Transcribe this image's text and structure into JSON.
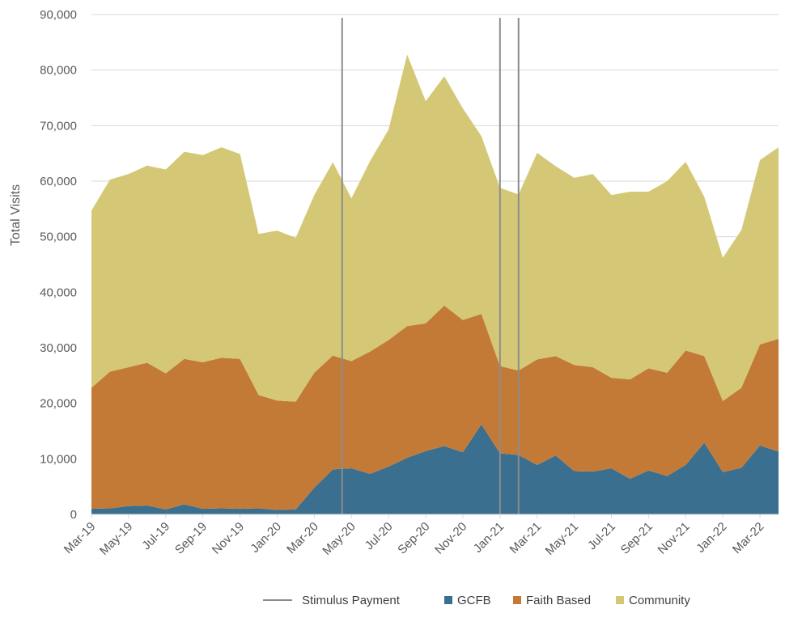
{
  "chart_data": {
    "type": "area",
    "stacked": true,
    "ylabel": "Total Visits",
    "xlabel": "",
    "ylim": [
      0,
      90000
    ],
    "yticks": [
      0,
      10000,
      20000,
      30000,
      40000,
      50000,
      60000,
      70000,
      80000,
      90000
    ],
    "ytick_labels": [
      "0",
      "10,000",
      "20,000",
      "30,000",
      "40,000",
      "50,000",
      "60,000",
      "70,000",
      "80,000",
      "90,000"
    ],
    "grid": "horizontal",
    "legend_position": "bottom",
    "x": [
      "Mar-19",
      "Apr-19",
      "May-19",
      "Jun-19",
      "Jul-19",
      "Aug-19",
      "Sep-19",
      "Oct-19",
      "Nov-19",
      "Dec-19",
      "Jan-20",
      "Feb-20",
      "Mar-20",
      "Apr-20",
      "May-20",
      "Jun-20",
      "Jul-20",
      "Aug-20",
      "Sep-20",
      "Oct-20",
      "Nov-20",
      "Dec-20",
      "Jan-21",
      "Feb-21",
      "Mar-21",
      "Apr-21",
      "May-21",
      "Jun-21",
      "Jul-21",
      "Aug-21",
      "Sep-21",
      "Oct-21",
      "Nov-21",
      "Dec-21",
      "Jan-22",
      "Feb-22",
      "Mar-22",
      "Apr-22"
    ],
    "x_tick_labels": [
      "Mar-19",
      "May-19",
      "Jul-19",
      "Sep-19",
      "Nov-19",
      "Jan-20",
      "Mar-20",
      "May-20",
      "Jul-20",
      "Sep-20",
      "Nov-20",
      "Jan-21",
      "Mar-21",
      "May-21",
      "Jul-21",
      "Sep-21",
      "Nov-21",
      "Jan-22",
      "Mar-22"
    ],
    "series": [
      {
        "name": "GCFB",
        "color": "#3a6f8f",
        "values": [
          1000,
          1100,
          1500,
          1600,
          900,
          1800,
          1000,
          1100,
          1000,
          1100,
          800,
          900,
          4800,
          8100,
          8300,
          7300,
          8600,
          10200,
          11400,
          12300,
          11200,
          16200,
          11000,
          10700,
          8900,
          10600,
          7800,
          7700,
          8300,
          6400,
          7900,
          6900,
          8900,
          12900,
          7600,
          8400,
          12400,
          11300
        ]
      },
      {
        "name": "Faith Based",
        "color": "#c47a37",
        "values": [
          21800,
          24600,
          25000,
          25700,
          24500,
          26200,
          26400,
          27100,
          27000,
          20400,
          19700,
          19400,
          20700,
          20500,
          19300,
          22000,
          22800,
          23700,
          23000,
          25300,
          23800,
          19900,
          15700,
          15200,
          19000,
          17900,
          19100,
          18800,
          16300,
          17900,
          18400,
          18600,
          20600,
          15600,
          12800,
          14400,
          18200,
          20300
        ]
      },
      {
        "name": "Community",
        "color": "#d4c877",
        "values": [
          31900,
          34600,
          34800,
          35500,
          36700,
          37300,
          37300,
          37900,
          36900,
          29000,
          30600,
          29500,
          32000,
          34800,
          29300,
          34300,
          37900,
          48900,
          40000,
          41300,
          38100,
          32000,
          32100,
          31700,
          37200,
          34200,
          33700,
          34800,
          32900,
          33800,
          31800,
          34500,
          34000,
          28700,
          25800,
          28400,
          33200,
          34500
        ]
      }
    ],
    "annotations": [
      {
        "label": "Stimulus Payment",
        "type": "vertical-line",
        "color": "#8c8c8c",
        "x": [
          13.5,
          22,
          23
        ]
      }
    ]
  },
  "legend": {
    "items": [
      {
        "label": "Stimulus Payment",
        "kind": "line",
        "color": "#8c8c8c"
      },
      {
        "label": "GCFB",
        "kind": "square",
        "color": "#3a6f8f"
      },
      {
        "label": "Faith Based",
        "kind": "square",
        "color": "#c47a37"
      },
      {
        "label": "Community",
        "kind": "square",
        "color": "#d4c877"
      }
    ]
  }
}
